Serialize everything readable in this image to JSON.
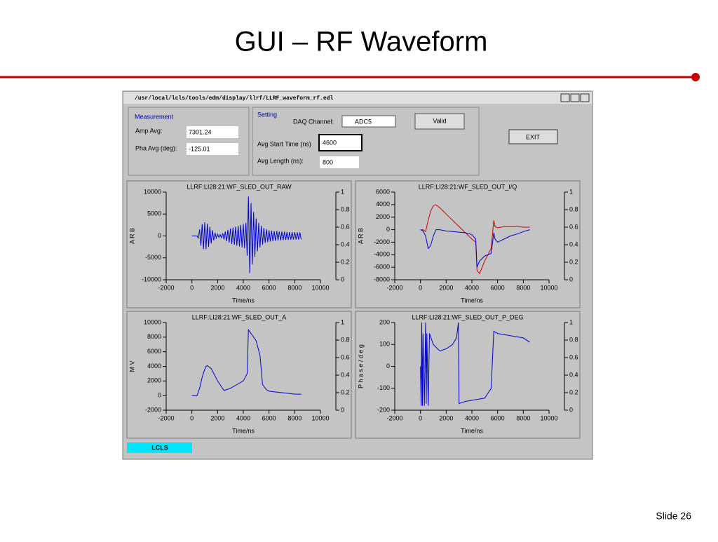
{
  "slide": {
    "title": "GUI – RF Waveform",
    "footer": "Slide 26"
  },
  "window": {
    "title": "/usr/local/lcls/tools/edm/display/llrf/LLRF_waveform_rf.edl",
    "measurement": {
      "heading": "Measurement",
      "amp_label": "Amp Avg:",
      "amp_value": "7301.24",
      "pha_label": "Pha Avg (deg):",
      "pha_value": "-125.01"
    },
    "setting": {
      "heading": "Setting",
      "daq_label": "DAQ Channel:",
      "daq_value": "ADC5",
      "status": "Valid",
      "start_label": "Avg Start Time (ns)",
      "start_value": "4600",
      "length_label": "Avg Length (ns):",
      "length_value": "800"
    },
    "exit": "EXIT",
    "footer_tag": "LCLS"
  },
  "chart_data": [
    {
      "type": "line",
      "title": "LLRF:LI28:21:WF_SLED_OUT_RAW",
      "y_label": "A R B",
      "x_label": "Time/ns",
      "xlim": [
        -2000,
        10000
      ],
      "xticks": [
        -2000,
        0,
        2000,
        4000,
        6000,
        8000,
        10000
      ],
      "ylim": [
        -10000,
        10000
      ],
      "yticks": [
        -10000,
        -5000,
        0,
        5000,
        10000
      ],
      "y2lim": [
        0,
        1
      ],
      "y2ticks": [
        0,
        0.2,
        0.4,
        0.6,
        0.8,
        1
      ],
      "x": [
        0,
        100,
        200,
        300,
        400,
        500,
        600,
        700,
        800,
        900,
        1000,
        1100,
        1200,
        1300,
        1400,
        1500,
        1600,
        1700,
        1800,
        1900,
        2000,
        2100,
        2200,
        2300,
        2400,
        2500,
        2600,
        2700,
        2800,
        2900,
        3000,
        3100,
        3200,
        3300,
        3400,
        3500,
        3600,
        3700,
        3800,
        3900,
        4000,
        4100,
        4200,
        4300,
        4400,
        4500,
        4600,
        4700,
        4800,
        4900,
        5000,
        5100,
        5200,
        5300,
        5400,
        5500,
        5600,
        5700,
        5800,
        5900,
        6000,
        6100,
        6200,
        6300,
        6400,
        6500,
        6600,
        6700,
        6800,
        6900,
        7000,
        7100,
        7200,
        7300,
        7400,
        7500,
        7600,
        7700,
        7800,
        7900,
        8000,
        8100,
        8200,
        8300,
        8400,
        8500
      ],
      "series": [
        {
          "color": "#0000cc",
          "values": [
            0,
            0,
            0,
            0,
            0,
            -500,
            1500,
            -2200,
            2700,
            -3000,
            3100,
            -3000,
            2800,
            -2500,
            2100,
            -1700,
            1300,
            -1000,
            700,
            -500,
            400,
            -300,
            300,
            -400,
            600,
            -800,
            1000,
            -1200,
            1400,
            -1500,
            1700,
            -1800,
            1900,
            -2000,
            2100,
            -2200,
            2300,
            -2400,
            2500,
            -2600,
            2700,
            -2800,
            3000,
            -4500,
            9000,
            -8500,
            7500,
            -6500,
            5500,
            -4800,
            4000,
            -3500,
            3000,
            -2600,
            2300,
            -2000,
            1800,
            -1600,
            1500,
            -1400,
            1300,
            -1300,
            1200,
            -1200,
            1100,
            -1100,
            1100,
            -1000,
            1000,
            -1000,
            1000,
            -950,
            950,
            -900,
            900,
            -900,
            900,
            -850,
            850,
            -850,
            850,
            -800,
            800,
            -800,
            800,
            -800
          ]
        }
      ]
    },
    {
      "type": "line",
      "title": "LLRF:LI28:21:WF_SLED_OUT_I/Q",
      "y_label": "A R B",
      "x_label": "Time/ns",
      "xlim": [
        -2000,
        10000
      ],
      "xticks": [
        -2000,
        0,
        2000,
        4000,
        6000,
        8000,
        10000
      ],
      "ylim": [
        -8000,
        6000
      ],
      "yticks": [
        -8000,
        -6000,
        -4000,
        -2000,
        0,
        2000,
        4000,
        6000
      ],
      "y2lim": [
        0,
        1
      ],
      "y2ticks": [
        0,
        0.2,
        0.4,
        0.6,
        0.8,
        1
      ],
      "x": [
        0,
        200,
        400,
        600,
        800,
        1000,
        1200,
        1500,
        2000,
        2500,
        3000,
        3500,
        4000,
        4300,
        4400,
        4600,
        5000,
        5500,
        5700,
        5800,
        6000,
        6500,
        7000,
        7500,
        8000,
        8500
      ],
      "series": [
        {
          "color": "#cc0000",
          "values": [
            0,
            0,
            -300,
            1500,
            3000,
            3800,
            4000,
            3500,
            2500,
            1500,
            500,
            -500,
            -1500,
            -2000,
            -6500,
            -7000,
            -5000,
            -3000,
            1500,
            500,
            300,
            500,
            500,
            500,
            400,
            400
          ]
        },
        {
          "color": "#0000cc",
          "values": [
            0,
            -200,
            -1000,
            -3000,
            -2500,
            -1000,
            0,
            0,
            -200,
            -300,
            -400,
            -500,
            -800,
            -1500,
            -6000,
            -5000,
            -4200,
            -3800,
            -500,
            -1500,
            -2000,
            -1500,
            -1000,
            -700,
            -300,
            0
          ]
        }
      ]
    },
    {
      "type": "line",
      "title": "LLRF:LI28:21:WF_SLED_OUT_A",
      "y_label": "M V",
      "x_label": "Time/ns",
      "xlim": [
        -2000,
        10000
      ],
      "xticks": [
        -2000,
        0,
        2000,
        4000,
        6000,
        8000,
        10000
      ],
      "ylim": [
        -2000,
        10000
      ],
      "yticks": [
        -2000,
        0,
        2000,
        4000,
        6000,
        8000,
        10000
      ],
      "y2lim": [
        0,
        1
      ],
      "y2ticks": [
        0,
        0.2,
        0.4,
        0.6,
        0.8,
        1
      ],
      "x": [
        0,
        400,
        600,
        800,
        1000,
        1100,
        1200,
        1500,
        2000,
        2500,
        3000,
        3500,
        4000,
        4300,
        4400,
        4600,
        5000,
        5300,
        5500,
        5800,
        6000,
        6500,
        7000,
        7500,
        8000,
        8500
      ],
      "series": [
        {
          "color": "#0000cc",
          "values": [
            0,
            0,
            1000,
            2500,
            3600,
            4000,
            4100,
            3700,
            2000,
            700,
            1000,
            1500,
            2000,
            3000,
            9000,
            8500,
            7500,
            5500,
            1500,
            800,
            600,
            500,
            400,
            300,
            200,
            200
          ]
        }
      ]
    },
    {
      "type": "line",
      "title": "LLRF:LI28:21:WF_SLED_OUT_P_DEG",
      "y_label": "P h a s e / d e g",
      "x_label": "Time/ns",
      "xlim": [
        -2000,
        10000
      ],
      "xticks": [
        -2000,
        0,
        2000,
        4000,
        6000,
        8000,
        10000
      ],
      "ylim": [
        -200,
        200
      ],
      "yticks": [
        -200,
        -100,
        0,
        100,
        200
      ],
      "y2lim": [
        0,
        1
      ],
      "y2ticks": [
        0,
        0.2,
        0.4,
        0.6,
        0.8,
        1
      ],
      "x": [
        0,
        50,
        100,
        150,
        200,
        300,
        400,
        450,
        500,
        600,
        700,
        1000,
        1500,
        2000,
        2500,
        2800,
        2950,
        3000,
        3500,
        4000,
        4500,
        5000,
        5500,
        5700,
        6000,
        7000,
        8000,
        8500
      ],
      "series": [
        {
          "color": "#0000cc",
          "values": [
            0,
            -180,
            200,
            -180,
            150,
            -180,
            200,
            -170,
            150,
            -180,
            150,
            100,
            70,
            80,
            100,
            130,
            200,
            -170,
            -160,
            -155,
            -150,
            -145,
            -100,
            160,
            150,
            140,
            130,
            110
          ]
        }
      ]
    }
  ]
}
